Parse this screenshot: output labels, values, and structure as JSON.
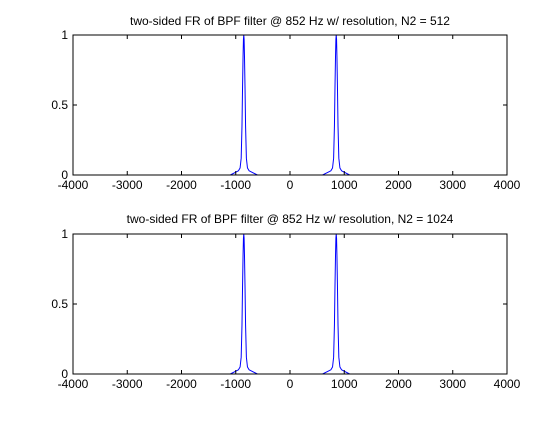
{
  "chart_data": [
    {
      "type": "line",
      "title": "two-sided FR of BPF filter @ 852 Hz w/ resolution, N2 = 512",
      "xlabel": "",
      "ylabel": "",
      "xlim": [
        -4000,
        4000
      ],
      "ylim": [
        0,
        1
      ],
      "xticks": [
        -4000,
        -3000,
        -2000,
        -1000,
        0,
        1000,
        2000,
        3000,
        4000
      ],
      "yticks": [
        0,
        0.5,
        1
      ],
      "grid": false,
      "line_color": "#0000ff",
      "series": [
        {
          "x": [
            -4000,
            -1100,
            -1000,
            -950,
            -920,
            -900,
            -885,
            -875,
            -865,
            -858,
            -852,
            -846,
            -839,
            -829,
            -819,
            -804,
            -784,
            -754,
            -704,
            -600,
            600,
            704,
            754,
            784,
            804,
            819,
            829,
            839,
            846,
            852,
            858,
            865,
            875,
            885,
            900,
            920,
            950,
            1000,
            1100,
            4000
          ],
          "y": [
            0.0,
            0.0,
            0.02,
            0.03,
            0.05,
            0.12,
            0.35,
            0.62,
            0.85,
            0.97,
            1.0,
            0.97,
            0.85,
            0.62,
            0.35,
            0.12,
            0.05,
            0.03,
            0.02,
            0.0,
            0.0,
            0.02,
            0.03,
            0.05,
            0.12,
            0.35,
            0.62,
            0.85,
            0.97,
            1.0,
            0.97,
            0.85,
            0.62,
            0.35,
            0.12,
            0.05,
            0.03,
            0.02,
            0.0,
            0.0
          ]
        }
      ]
    },
    {
      "type": "line",
      "title": "two-sided FR of BPF filter @ 852 Hz w/ resolution, N2 = 1024",
      "xlabel": "",
      "ylabel": "",
      "xlim": [
        -4000,
        4000
      ],
      "ylim": [
        0,
        1
      ],
      "xticks": [
        -4000,
        -3000,
        -2000,
        -1000,
        0,
        1000,
        2000,
        3000,
        4000
      ],
      "yticks": [
        0,
        0.5,
        1
      ],
      "grid": false,
      "line_color": "#0000ff",
      "series": [
        {
          "x": [
            -4000,
            -1100,
            -1000,
            -950,
            -920,
            -900,
            -885,
            -875,
            -865,
            -858,
            -852,
            -846,
            -839,
            -829,
            -819,
            -804,
            -784,
            -754,
            -704,
            -600,
            600,
            704,
            754,
            784,
            804,
            819,
            829,
            839,
            846,
            852,
            858,
            865,
            875,
            885,
            900,
            920,
            950,
            1000,
            1100,
            4000
          ],
          "y": [
            0.0,
            0.0,
            0.02,
            0.03,
            0.05,
            0.12,
            0.35,
            0.62,
            0.85,
            0.97,
            1.0,
            0.97,
            0.85,
            0.62,
            0.35,
            0.12,
            0.05,
            0.03,
            0.02,
            0.0,
            0.0,
            0.02,
            0.03,
            0.05,
            0.12,
            0.35,
            0.62,
            0.85,
            0.97,
            1.0,
            0.97,
            0.85,
            0.62,
            0.35,
            0.12,
            0.05,
            0.03,
            0.02,
            0.0,
            0.0
          ]
        }
      ]
    }
  ]
}
